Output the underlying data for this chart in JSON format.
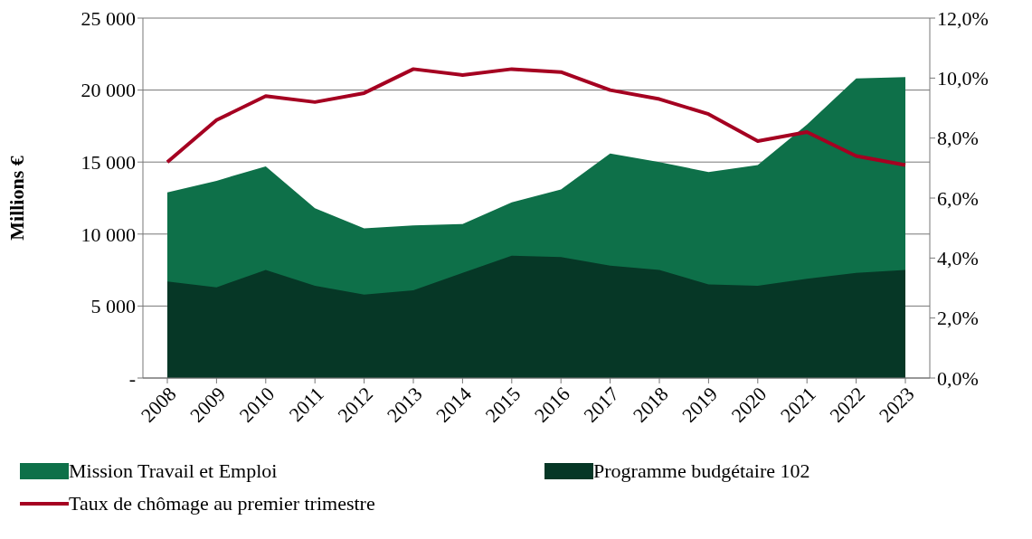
{
  "chart_data": {
    "type": "area",
    "ylabel": "Millions €",
    "categories": [
      "2008",
      "2009",
      "2010",
      "2011",
      "2012",
      "2013",
      "2014",
      "2015",
      "2016",
      "2017",
      "2018",
      "2019",
      "2020",
      "2021",
      "2022",
      "2023"
    ],
    "series": [
      {
        "name": "Mission Travail et Emploi",
        "color": "#0e7049",
        "values": [
          12900,
          13700,
          14700,
          11800,
          10400,
          10600,
          10700,
          12200,
          13100,
          15600,
          15000,
          14300,
          14800,
          17600,
          20800,
          20900
        ]
      },
      {
        "name": "Programme budgétaire 102",
        "color": "#063726",
        "values": [
          6700,
          6300,
          7500,
          6400,
          5800,
          6100,
          7300,
          8500,
          8400,
          7800,
          7500,
          6500,
          6400,
          6900,
          7300,
          7500
        ]
      },
      {
        "name": "Taux de chômage au premier trimestre",
        "type": "line",
        "axis": "y2",
        "color": "#a50021",
        "values": [
          7.2,
          8.6,
          9.4,
          9.2,
          9.5,
          10.3,
          10.1,
          10.3,
          10.2,
          9.6,
          9.3,
          8.8,
          7.9,
          8.2,
          7.4,
          7.1
        ]
      }
    ],
    "ylim": [
      0,
      25000
    ],
    "yticks": [
      {
        "value": 0,
        "label": "-"
      },
      {
        "value": 5000,
        "label": "5 000"
      },
      {
        "value": 10000,
        "label": "10 000"
      },
      {
        "value": 15000,
        "label": "15 000"
      },
      {
        "value": 20000,
        "label": "20 000"
      },
      {
        "value": 25000,
        "label": "25 000"
      }
    ],
    "y2lim": [
      0,
      12
    ],
    "y2ticks": [
      {
        "value": 0,
        "label": "0,0%"
      },
      {
        "value": 2,
        "label": "2,0%"
      },
      {
        "value": 4,
        "label": "4,0%"
      },
      {
        "value": 6,
        "label": "6,0%"
      },
      {
        "value": 8,
        "label": "8,0%"
      },
      {
        "value": 10,
        "label": "10,0%"
      },
      {
        "value": 12,
        "label": "12,0%"
      }
    ],
    "grid": "y",
    "legend": "bottom",
    "marker": "none",
    "line_style": "solid"
  }
}
